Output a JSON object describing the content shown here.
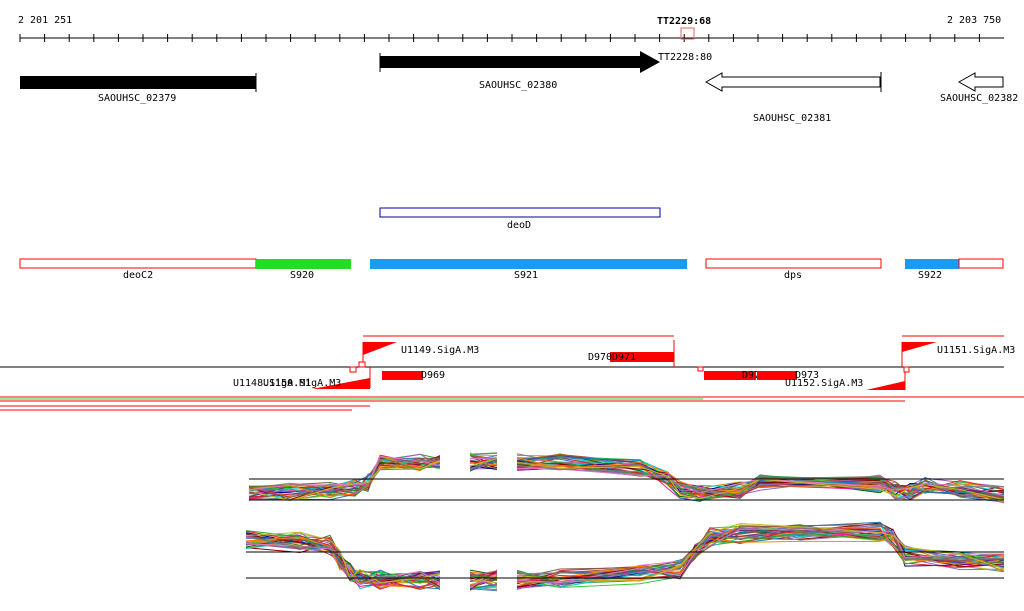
{
  "ruler": {
    "start_label": "2 201 251",
    "end_label": "2 203 750",
    "marker_top": "TT2229:68",
    "marker_bottom": "TT2228:80"
  },
  "genes": {
    "g1": "SAOUHSC_02379",
    "g2": "SAOUHSC_02380",
    "g3": "SAOUHSC_02381",
    "g4": "SAOUHSC_02382"
  },
  "annotations": {
    "deoD": "deoD"
  },
  "segments": {
    "deoC2": "deoC2",
    "s920": "S920",
    "s921": "S921",
    "dps": "dps",
    "s922": "S922"
  },
  "features": {
    "u1149": "U1149.SigA.M3",
    "u1148": "U1148.SigA.M1",
    "u1150": "U1150.SigA.M3",
    "d970": "D970",
    "d971": "D971",
    "d969": "D969",
    "d972": "D972",
    "d973": "D973",
    "u1152": "U1152.SigA.M3",
    "u1151": "U1151.SigA.M3"
  },
  "colors": {
    "green": "#22dd22",
    "blue": "#1a9bf0",
    "red": "#ff0000",
    "navy": "#000099"
  }
}
